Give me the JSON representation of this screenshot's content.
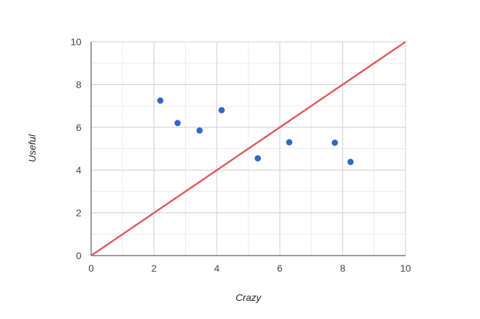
{
  "chart_data": {
    "type": "scatter",
    "xlabel": "Crazy",
    "ylabel": "Useful",
    "xlim": [
      0,
      10
    ],
    "ylim": [
      0,
      10
    ],
    "x_ticks": [
      "0",
      "2",
      "4",
      "6",
      "8",
      "10"
    ],
    "y_ticks": [
      "0",
      "2",
      "4",
      "6",
      "8",
      "10"
    ],
    "grid": true,
    "series": [
      {
        "type": "scatter",
        "color": "#3366cc",
        "points": [
          {
            "x": 2.2,
            "y": 7.25
          },
          {
            "x": 2.75,
            "y": 6.2
          },
          {
            "x": 3.45,
            "y": 5.85
          },
          {
            "x": 4.15,
            "y": 6.8
          },
          {
            "x": 5.3,
            "y": 4.55
          },
          {
            "x": 6.3,
            "y": 5.3
          },
          {
            "x": 7.75,
            "y": 5.28
          },
          {
            "x": 8.25,
            "y": 4.38
          }
        ]
      },
      {
        "type": "line",
        "color": "#e0565b",
        "points": [
          {
            "x": 0,
            "y": 0
          },
          {
            "x": 10,
            "y": 10
          }
        ]
      }
    ]
  }
}
